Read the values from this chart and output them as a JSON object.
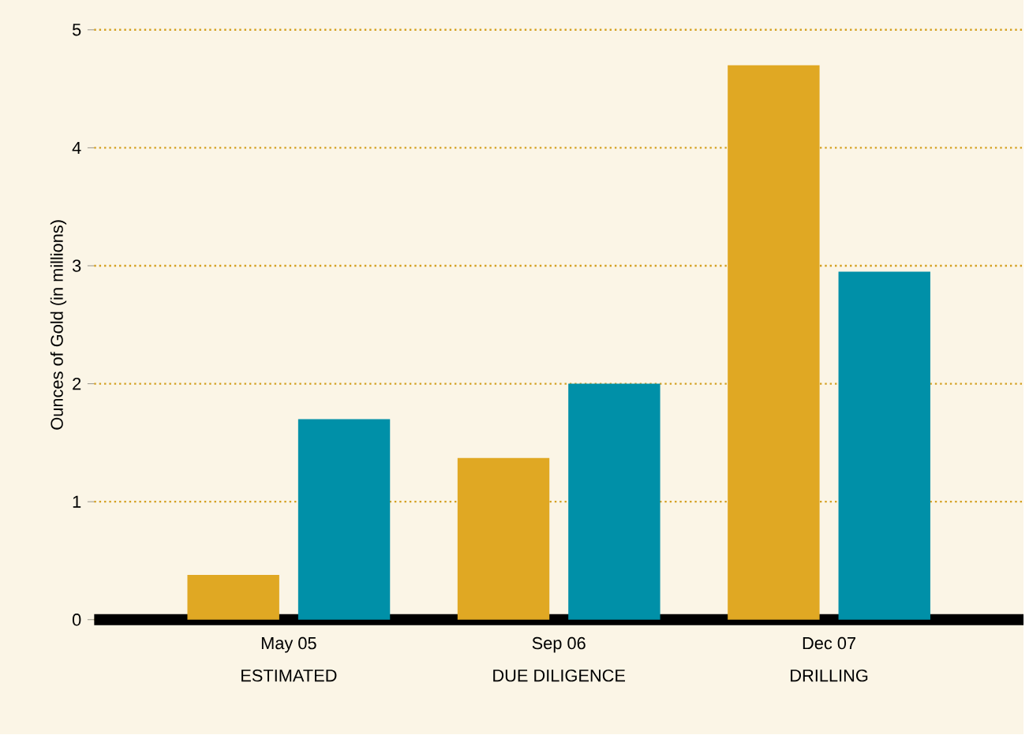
{
  "chart_data": {
    "type": "bar",
    "ylabel": "Ounces of Gold (in millions)",
    "categories": [
      "May 05",
      "Sep 06",
      "Dec 07"
    ],
    "series": [
      {
        "color": "#e0a823",
        "values": [
          0.38,
          1.37,
          4.7
        ]
      },
      {
        "color": "#0090a8",
        "values": [
          1.7,
          2.0,
          2.95
        ]
      }
    ],
    "annotations": [
      "ESTIMATED",
      "DUE DILIGENCE",
      "DRILLING"
    ],
    "ylim": [
      0,
      5
    ],
    "yticks": [
      0,
      1,
      2,
      3,
      4,
      5
    ],
    "grid": "y"
  }
}
